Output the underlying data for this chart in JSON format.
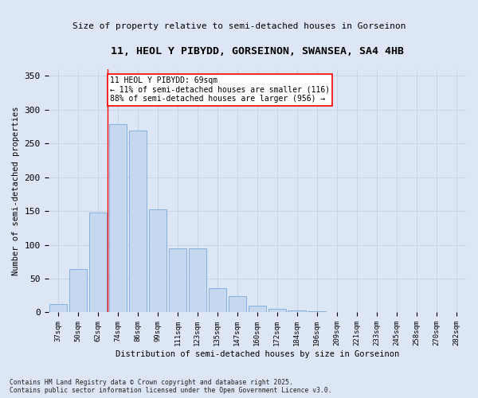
{
  "title1": "11, HEOL Y PIBYDD, GORSEINON, SWANSEA, SA4 4HB",
  "title2": "Size of property relative to semi-detached houses in Gorseinon",
  "xlabel": "Distribution of semi-detached houses by size in Gorseinon",
  "ylabel": "Number of semi-detached properties",
  "categories": [
    "37sqm",
    "50sqm",
    "62sqm",
    "74sqm",
    "86sqm",
    "99sqm",
    "111sqm",
    "123sqm",
    "135sqm",
    "147sqm",
    "160sqm",
    "172sqm",
    "184sqm",
    "196sqm",
    "209sqm",
    "221sqm",
    "233sqm",
    "245sqm",
    "258sqm",
    "270sqm",
    "282sqm"
  ],
  "values": [
    12,
    64,
    148,
    279,
    269,
    152,
    95,
    95,
    36,
    24,
    10,
    5,
    3,
    2,
    1,
    0,
    0,
    1,
    0,
    0,
    1
  ],
  "bar_color": "#c5d8ef",
  "bar_edge_color": "#7aaadb",
  "red_line_x": 2.5,
  "annotation_text": "11 HEOL Y PIBYDD: 69sqm\n← 11% of semi-detached houses are smaller (116)\n88% of semi-detached houses are larger (956) →",
  "footnote": "Contains HM Land Registry data © Crown copyright and database right 2025.\nContains public sector information licensed under the Open Government Licence v3.0.",
  "ylim": [
    0,
    360
  ],
  "yticks": [
    0,
    50,
    100,
    150,
    200,
    250,
    300,
    350
  ],
  "grid_color": "#c8d4e8",
  "background_color": "#dce6f5"
}
